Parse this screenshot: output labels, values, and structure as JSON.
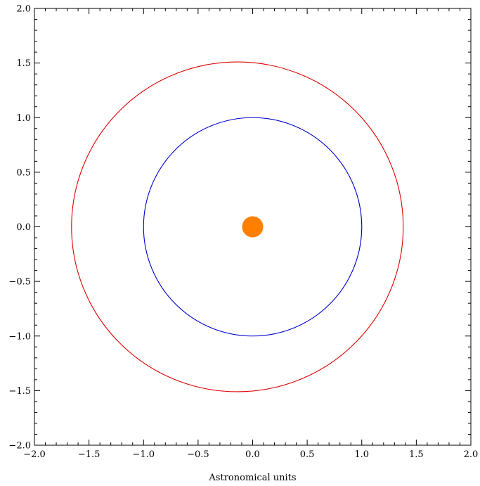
{
  "chart_data": {
    "type": "line",
    "title": "",
    "xlabel": "Astronomical units",
    "ylabel": "",
    "xlim": [
      -2.0,
      2.0
    ],
    "ylim": [
      -2.0,
      2.0
    ],
    "x_ticks": [
      "−2.0",
      "−1.5",
      "−1.0",
      "−0.5",
      "0.0",
      "0.5",
      "1.0",
      "1.5",
      "2.0"
    ],
    "y_ticks": [
      "2.0",
      "1.5",
      "1.0",
      "0.5",
      "0.0",
      "−0.5",
      "−1.0",
      "−1.5",
      "−2.0"
    ],
    "x_tick_values": [
      -2.0,
      -1.5,
      -1.0,
      -0.5,
      0.0,
      0.5,
      1.0,
      1.5,
      2.0
    ],
    "y_tick_values": [
      2.0,
      1.5,
      1.0,
      0.5,
      0.0,
      -0.5,
      -1.0,
      -1.5,
      -2.0
    ],
    "grid": false,
    "legend": "none",
    "series": [
      {
        "shape": "circle",
        "center": [
          0.0,
          0.0
        ],
        "radius": 1.0,
        "color": "#0000cc"
      },
      {
        "shape": "ellipse",
        "center": [
          -0.14,
          0.0
        ],
        "semi_major_axis": 1.52,
        "semi_minor_axis": 1.51,
        "color": "#e00000"
      }
    ],
    "points": [
      {
        "x": 0.0,
        "y": 0.0,
        "color": "#ff8000"
      }
    ]
  }
}
